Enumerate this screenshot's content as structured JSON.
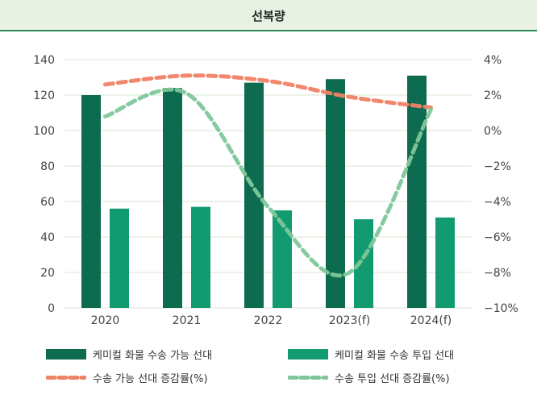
{
  "header": {
    "title": "선복량"
  },
  "colors": {
    "header_bg": "#e9f2e2",
    "header_rule": "#2e8b57",
    "capacity_bar": "#0d6b4f",
    "input_bar": "#129a70",
    "capacity_line": "#f08266",
    "input_line": "#7fc79a",
    "grid": "#d7e7d2"
  },
  "chart_data": {
    "type": "bar",
    "categories": [
      "2020",
      "2021",
      "2022",
      "2023(f)",
      "2024(f)"
    ],
    "series": [
      {
        "name": "케미컬 화물 수송 가능 선대",
        "type": "bar",
        "axis": "left",
        "values": [
          120,
          124,
          127,
          129,
          131
        ]
      },
      {
        "name": "케미컬 화물 수송 투입 선대",
        "type": "bar",
        "axis": "left",
        "values": [
          56,
          57,
          55,
          50,
          51
        ]
      },
      {
        "name": "수송 가능 선대 증감률(%)",
        "type": "line",
        "axis": "right",
        "values": [
          2.6,
          3.1,
          2.8,
          1.9,
          1.3
        ]
      },
      {
        "name": "수송 투입 선대 증감률(%)",
        "type": "line",
        "axis": "right",
        "values": [
          0.8,
          2.1,
          -4.3,
          -8.0,
          1.2
        ]
      }
    ],
    "y_left": {
      "ticks": [
        "0",
        "20",
        "40",
        "60",
        "80",
        "100",
        "120",
        "140"
      ],
      "ylim": [
        0,
        140
      ]
    },
    "y_right": {
      "ticks": [
        "−10%",
        "−8%",
        "−6%",
        "−4%",
        "−2%",
        "0%",
        "2%",
        "4%"
      ],
      "ylim": [
        -10,
        4
      ]
    },
    "grid": true,
    "legend_position": "bottom"
  },
  "legend": {
    "capacity_bar_label": "케미컬 화물 수송 가능 선대",
    "input_bar_label": "케미컬 화물 수송 투입 선대",
    "capacity_line_label": "수송 가능 선대 증감률(%)",
    "input_line_label": "수송 투입 선대 증감률(%)"
  }
}
